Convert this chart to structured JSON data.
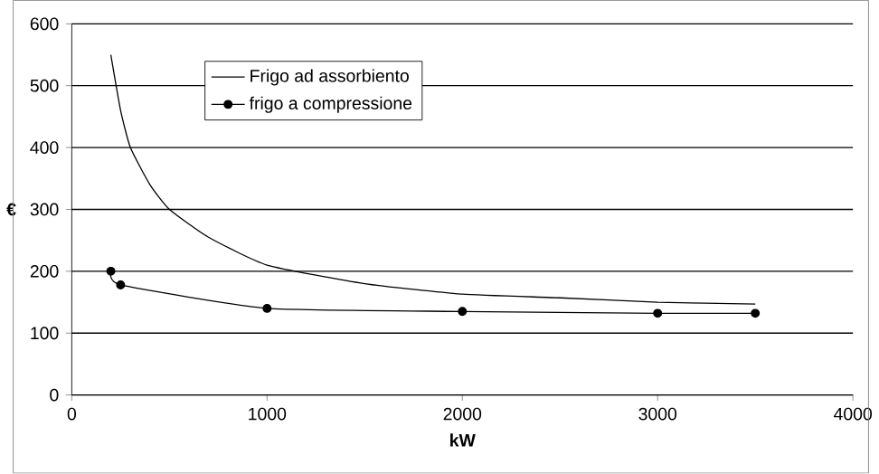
{
  "chart_data": {
    "type": "line",
    "xlabel": "kW",
    "ylabel": "€",
    "xlim": [
      0,
      4000
    ],
    "ylim": [
      0,
      600
    ],
    "xticks": [
      0,
      1000,
      2000,
      3000,
      4000
    ],
    "yticks": [
      0,
      100,
      200,
      300,
      400,
      500,
      600
    ],
    "grid": "y",
    "legend": "top",
    "line_style": "solid",
    "series": [
      {
        "name": "Frigo ad assorbiento",
        "color": "#000000",
        "marker": "none",
        "x": [
          200,
          250,
          300,
          400,
          500,
          700,
          1000,
          1500,
          2000,
          2500,
          3000,
          3500
        ],
        "values": [
          550,
          460,
          400,
          340,
          300,
          255,
          210,
          180,
          163,
          157,
          150,
          147
        ]
      },
      {
        "name": "frigo a compressione",
        "color": "#000000",
        "marker": "circle",
        "x": [
          200,
          250,
          1000,
          2000,
          3000,
          3500
        ],
        "values": [
          200,
          178,
          140,
          135,
          132,
          132
        ]
      }
    ]
  }
}
